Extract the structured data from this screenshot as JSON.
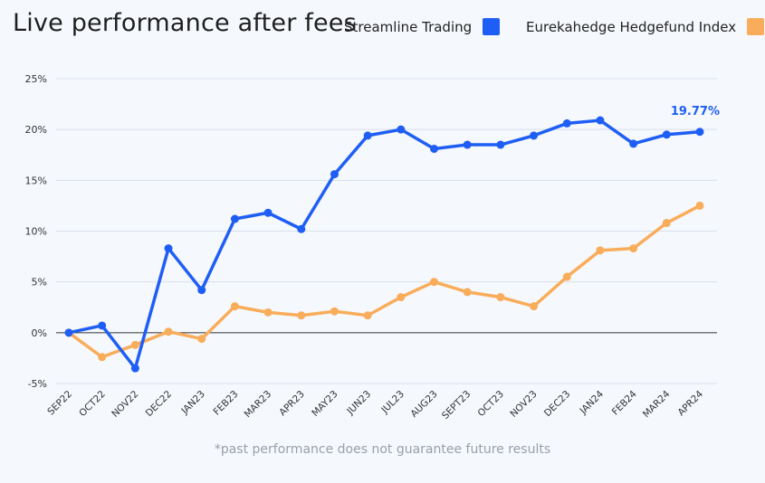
{
  "title": "Live performance after fees",
  "footnote": "*past performance does not guarantee future results",
  "chart_data": {
    "type": "line",
    "x": [
      "SEP22",
      "OCT22",
      "NOV22",
      "DEC22",
      "JAN23",
      "FEB23",
      "MAR23",
      "APR23",
      "MAY23",
      "JUN23",
      "JUL23",
      "AUG23",
      "SEPT23",
      "OCT23",
      "NOV23",
      "DEC23",
      "JAN24",
      "FEB24",
      "MAR24",
      "APR24"
    ],
    "ylim": [
      -5,
      25
    ],
    "yticks": [
      -5,
      0,
      5,
      10,
      15,
      20,
      25
    ],
    "ytick_labels": [
      "-5%",
      "0%",
      "5%",
      "10%",
      "15%",
      "20%",
      "25%"
    ],
    "grid": true,
    "legend": "top-right",
    "series": [
      {
        "name": "Streamline Trading",
        "color": "#1f5ef5",
        "values": [
          0,
          0.7,
          -3.5,
          8.3,
          4.2,
          11.2,
          11.8,
          10.2,
          15.6,
          19.4,
          20.0,
          18.1,
          18.5,
          18.5,
          19.4,
          20.6,
          20.9,
          18.6,
          19.5,
          19.77
        ]
      },
      {
        "name": "Eurekahedge Hedgefund Index",
        "color": "#f9ad5a",
        "values": [
          0,
          -2.4,
          -1.2,
          0.1,
          -0.6,
          2.6,
          2.0,
          1.7,
          2.1,
          1.7,
          3.5,
          5.0,
          4.0,
          3.5,
          2.6,
          5.5,
          8.1,
          8.3,
          10.8,
          12.5
        ]
      }
    ],
    "annotation": {
      "text": "19.77%",
      "series": 0,
      "index": 19,
      "color": "#1f5ef5"
    }
  }
}
